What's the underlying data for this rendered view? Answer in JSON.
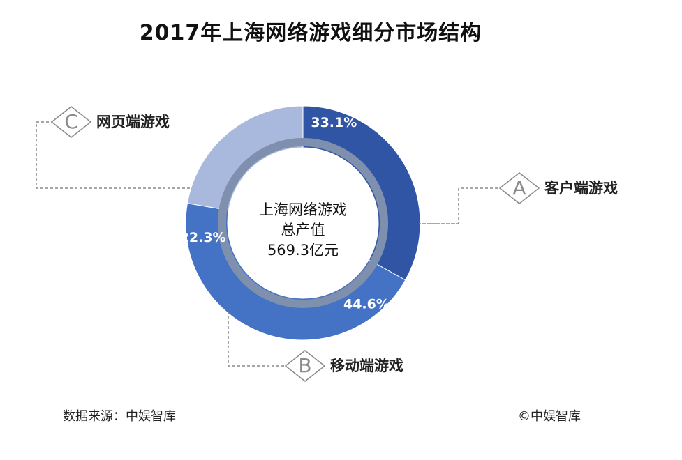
{
  "chart_data": {
    "type": "pie",
    "title": "2017年上海网络游戏细分市场结构",
    "center_label": [
      "上海网络游戏",
      "总产值",
      "569.3亿元"
    ],
    "slices": [
      {
        "label": "客户端游戏",
        "marker": "A",
        "value": 33.1,
        "value_label": "33.1%",
        "color": "#2f55a4"
      },
      {
        "label": "移动端游戏",
        "marker": "B",
        "value": 44.6,
        "value_label": "44.6%",
        "color": "#4472c4"
      },
      {
        "label": "网页端游戏",
        "marker": "C",
        "value": 22.3,
        "value_label": "22.3%",
        "color": "#a9b8dd"
      }
    ]
  },
  "footer": {
    "source": "数据来源：中娱智库",
    "copyright": "©中娱智库"
  }
}
